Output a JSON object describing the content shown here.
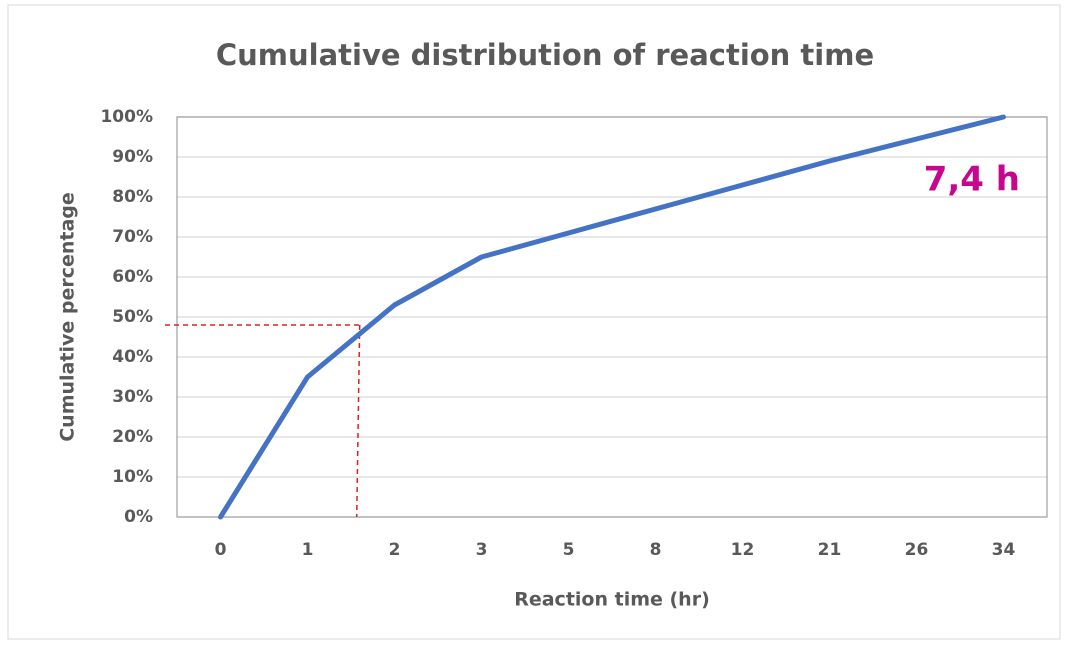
{
  "chart_data": {
    "type": "line",
    "title": "Cumulative distribution of reaction time",
    "x_label": "Reaction time (hr)",
    "y_label": "Cumulative percentage",
    "categories": [
      "0",
      "1",
      "2",
      "3",
      "5",
      "8",
      "12",
      "21",
      "26",
      "34"
    ],
    "series": [
      {
        "name": "Cumulative percentage",
        "color": "#4472c4",
        "values": [
          0,
          35,
          53,
          65,
          71,
          77,
          83,
          89,
          94.5,
          100
        ]
      }
    ],
    "ylim": [
      0,
      100
    ],
    "yticks": [
      {
        "value": 0,
        "label": "0%"
      },
      {
        "value": 10,
        "label": "10%"
      },
      {
        "value": 20,
        "label": "20%"
      },
      {
        "value": 30,
        "label": "30%"
      },
      {
        "value": 40,
        "label": "40%"
      },
      {
        "value": 50,
        "label": "50%"
      },
      {
        "value": 60,
        "label": "60%"
      },
      {
        "value": 70,
        "label": "70%"
      },
      {
        "value": 80,
        "label": "80%"
      },
      {
        "value": 90,
        "label": "90%"
      },
      {
        "value": 100,
        "label": "100%"
      }
    ],
    "grid": true,
    "annotation": {
      "text": "7,4 h",
      "color": "#c7068f"
    },
    "reference_line": {
      "y": 48,
      "x_index": 1.6,
      "color": "#e02020"
    }
  }
}
